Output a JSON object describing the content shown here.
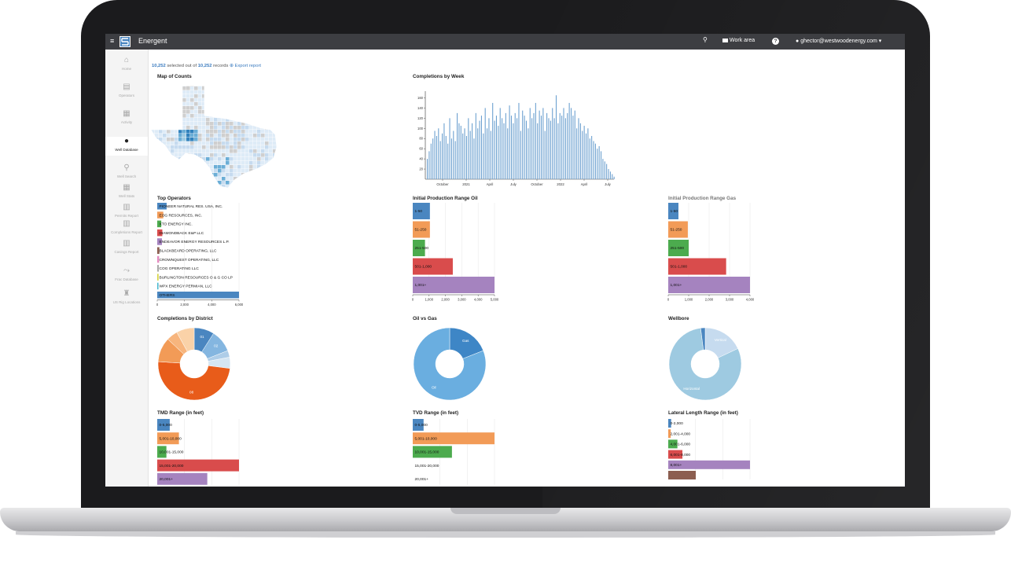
{
  "app": {
    "title": "Energent",
    "menu_icon": "hamburger-icon"
  },
  "topbar": {
    "work_area_label": "Work area",
    "user_label": "ghector@westwoodenergy.com",
    "icons": [
      "search-icon",
      "folder-icon",
      "help-icon",
      "user-icon"
    ]
  },
  "sidebar": {
    "items": [
      {
        "label": "Home",
        "icon": "home-icon",
        "glyph": "⌂"
      },
      {
        "label": "Operators",
        "icon": "building-icon",
        "glyph": "▤"
      },
      {
        "label": "Activity",
        "icon": "calendar-icon",
        "glyph": "▦"
      },
      {
        "label": "Well Database",
        "icon": "drop-icon",
        "glyph": "●",
        "active": true
      },
      {
        "label": "Well Search",
        "icon": "search-icon",
        "glyph": "⚲"
      },
      {
        "label": "Well Stats",
        "icon": "table-icon",
        "glyph": "▦"
      },
      {
        "label": "Permits Report",
        "icon": "chart-icon",
        "glyph": "▥"
      },
      {
        "label": "Completions Report",
        "icon": "chart-icon",
        "glyph": "▥"
      },
      {
        "label": "Casings Report",
        "icon": "chart-icon",
        "glyph": "▥"
      },
      {
        "label": "Frac Database",
        "icon": "frac-icon",
        "glyph": "⤳"
      },
      {
        "label": "US Rig Locations",
        "icon": "rig-icon",
        "glyph": "♜"
      }
    ]
  },
  "summary": {
    "selected": "10,252",
    "mid_text": "selected out of",
    "total": "10,252",
    "records": "records",
    "export_label": "Export report"
  },
  "sections": {
    "map": "Map of Counts",
    "completions_week": "Completions by Week",
    "top_operators": "Top Operators",
    "ip_oil": "Initial Production Range Oil",
    "ip_gas": "Initial Production Range Gas",
    "district": "Completions by District",
    "oil_gas": "Oil vs Gas",
    "wellbore": "Wellbore",
    "tmd": "TMD Range (in feet)",
    "tvd": "TVD Range (in feet)",
    "lateral": "Lateral Length Range (in feet)"
  },
  "colors": {
    "blue": "#4a86c0",
    "orange": "#f29b57",
    "green": "#4cab4e",
    "red": "#d94c4c",
    "purple": "#a583bf",
    "brown": "#8c5e50",
    "pink": "#e58bc0",
    "gray": "#a8a8a8",
    "yellow": "#d8d544",
    "teal": "#46b8cf"
  },
  "chart_data": [
    {
      "type": "bar",
      "title": "Completions by Week",
      "x_tick_labels": [
        "October",
        "2021",
        "April",
        "July",
        "October",
        "2022",
        "April",
        "July"
      ],
      "y_ticks": [
        20,
        40,
        60,
        80,
        100,
        120,
        140,
        160
      ],
      "ylim": [
        0,
        170
      ],
      "values": [
        40,
        55,
        70,
        80,
        95,
        85,
        100,
        75,
        90,
        110,
        85,
        70,
        120,
        80,
        95,
        75,
        130,
        110,
        105,
        90,
        100,
        85,
        120,
        95,
        110,
        80,
        130,
        100,
        115,
        125,
        90,
        140,
        100,
        120,
        95,
        150,
        115,
        125,
        105,
        140,
        120,
        110,
        130,
        100,
        145,
        125,
        110,
        130,
        120,
        150,
        95,
        135,
        125,
        115,
        100,
        140,
        120,
        130,
        150,
        110,
        135,
        125,
        140,
        95,
        130,
        120,
        115,
        140,
        120,
        165,
        110,
        130,
        125,
        140,
        120,
        130,
        150,
        140,
        125,
        135,
        100,
        120,
        110,
        95,
        105,
        90,
        100,
        80,
        85,
        75,
        70,
        60,
        65,
        55,
        40,
        35,
        30,
        20,
        15,
        10,
        5
      ],
      "grid": false
    },
    {
      "type": "bar",
      "title": "Top Operators",
      "categories": [
        "PIONEER NATURAL RES. USA, INC.",
        "EOG RESOURCES, INC.",
        "XTO ENERGY INC.",
        "DIAMONDBACK E&P LLC",
        "ENDEAVOR ENERGY RESOURCES L.P.",
        "BLACKBEARD OPERATING, LLC",
        "CROWNQUEST OPERATING, LLC",
        "COG OPERATING LLC",
        "BURLINGTON RESOURCES O & G CO LP",
        "WPX ENERGY PERMIAN, LLC",
        "OTHERS"
      ],
      "values": [
        700,
        450,
        300,
        380,
        350,
        160,
        140,
        120,
        100,
        90,
        6100
      ],
      "x_ticks": [
        "0",
        "2,000",
        "4,000",
        "6,000"
      ],
      "xlim": [
        0,
        6100
      ]
    },
    {
      "type": "bar",
      "title": "Initial Production Range Oil",
      "categories": [
        "1-50",
        "51-250",
        "251-500",
        "501-1,000",
        "1,001+"
      ],
      "values": [
        1050,
        1050,
        750,
        2450,
        5000
      ],
      "x_ticks": [
        "0",
        "1,000",
        "2,000",
        "3,000",
        "4,000",
        "5,000"
      ],
      "xlim": [
        0,
        5000
      ]
    },
    {
      "type": "bar",
      "title": "Initial Production Range Gas",
      "categories": [
        "1-50",
        "51-250",
        "251-500",
        "501-1,000",
        "1,001+"
      ],
      "values": [
        600,
        1150,
        1200,
        3400,
        4800
      ],
      "x_ticks": [
        "0",
        "1,000",
        "2,000",
        "3,000",
        "4,000"
      ],
      "xlim": [
        0,
        4800
      ]
    },
    {
      "type": "pie",
      "title": "Completions by District",
      "labels": [
        "01",
        "02",
        "",
        "",
        "08",
        "",
        "",
        ""
      ],
      "values": [
        9,
        10,
        3,
        5,
        49,
        11,
        5,
        8
      ]
    },
    {
      "type": "pie",
      "title": "Oil vs Gas",
      "labels": [
        "Gas",
        "Oil"
      ],
      "values": [
        19,
        81
      ]
    },
    {
      "type": "pie",
      "title": "Wellbore",
      "labels": [
        "Vertical",
        "Horizontal",
        ""
      ],
      "values": [
        18,
        80,
        2
      ]
    },
    {
      "type": "bar",
      "title": "TMD Range (in feet)",
      "categories": [
        "0-5,000",
        "5,001-10,000",
        "10,001-15,000",
        "15,001-20,000",
        "20,001+"
      ],
      "values": [
        1500,
        2600,
        1100,
        9800,
        6000
      ],
      "xlim": [
        0,
        9800
      ]
    },
    {
      "type": "bar",
      "title": "TVD Range (in feet)",
      "categories": [
        "0-5,000",
        "5,001-10,000",
        "10,001-15,000",
        "15,001-20,000",
        "20,001+"
      ],
      "values": [
        1300,
        9800,
        4700,
        0,
        0
      ],
      "xlim": [
        0,
        9800
      ]
    },
    {
      "type": "bar",
      "title": "Lateral Length Range (in feet)",
      "categories": [
        "0-2,000",
        "2,001-4,000",
        "4,001-6,000",
        "6,001-8,000",
        "8,001+",
        ""
      ],
      "values": [
        350,
        300,
        1100,
        1700,
        9800,
        3300
      ],
      "xlim": [
        0,
        9800
      ]
    }
  ]
}
